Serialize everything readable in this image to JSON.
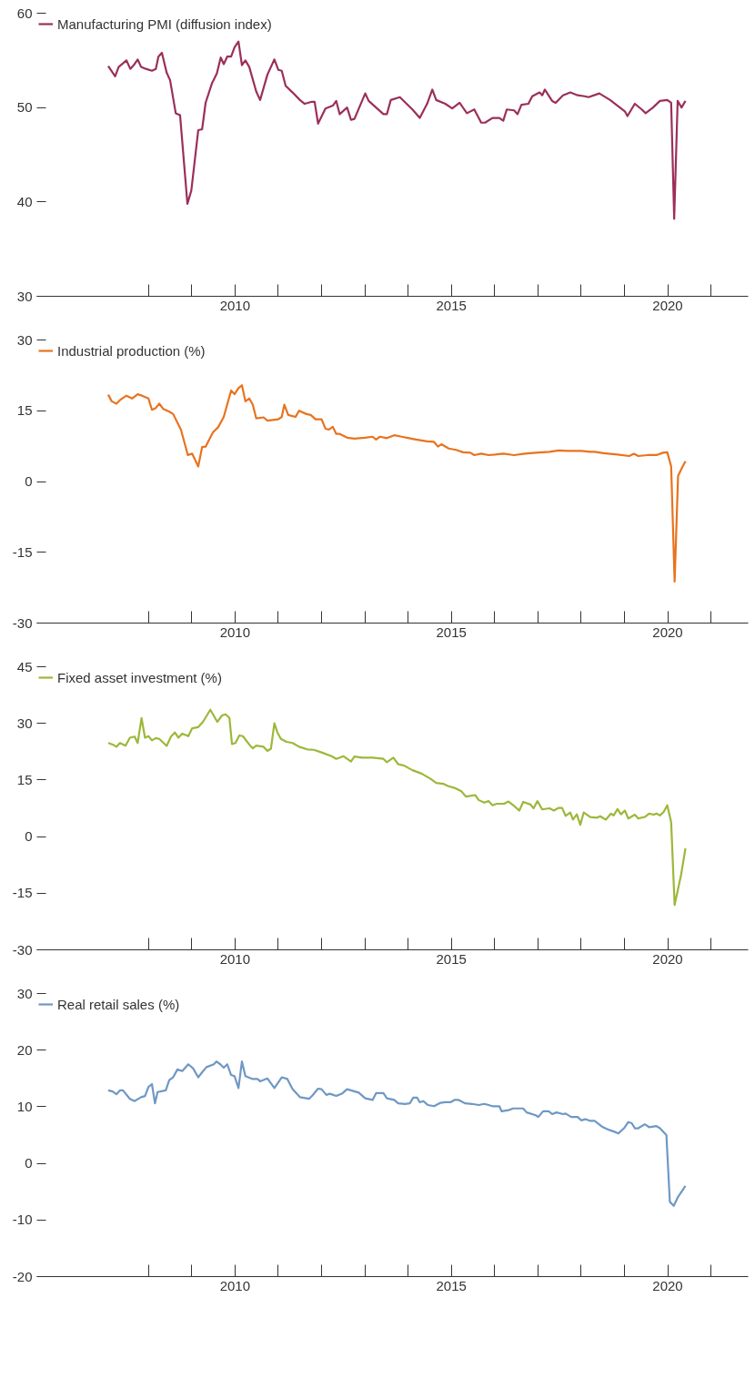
{
  "chart_data": [
    {
      "type": "line",
      "legend": "top left",
      "xlim": [
        2005.42,
        2021.86
      ],
      "ylim": [
        30,
        60
      ],
      "yticks": [
        30,
        40,
        50,
        60
      ],
      "xticks": [
        {
          "value": 2008,
          "label": null
        },
        {
          "value": 2009,
          "label": null
        },
        {
          "value": 2010,
          "label": "2010"
        },
        {
          "value": 2011,
          "label": null
        },
        {
          "value": 2012,
          "label": null
        },
        {
          "value": 2013,
          "label": null
        },
        {
          "value": 2014,
          "label": null
        },
        {
          "value": 2015,
          "label": "2015"
        },
        {
          "value": 2016,
          "label": null
        },
        {
          "value": 2017,
          "label": null
        },
        {
          "value": 2018,
          "label": null
        },
        {
          "value": 2019,
          "label": null
        },
        {
          "value": 2020,
          "label": "2020"
        },
        {
          "value": 2021,
          "label": null
        }
      ],
      "x": [
        2007.07,
        2007.23,
        2007.31,
        2007.49,
        2007.58,
        2007.66,
        2007.75,
        2007.83,
        2007.94,
        2008.08,
        2008.17,
        2008.23,
        2008.31,
        2008.42,
        2008.5,
        2008.63,
        2008.73,
        2008.9,
        2008.99,
        2009.15,
        2009.24,
        2009.32,
        2009.47,
        2009.58,
        2009.67,
        2009.74,
        2009.82,
        2009.91,
        2009.99,
        2010.08,
        2010.16,
        2010.24,
        2010.33,
        2010.49,
        2010.58,
        2010.75,
        2010.91,
        2011.0,
        2011.08,
        2011.17,
        2011.33,
        2011.5,
        2011.61,
        2011.76,
        2011.84,
        2011.92,
        2012.09,
        2012.26,
        2012.34,
        2012.42,
        2012.59,
        2012.68,
        2012.76,
        2013.01,
        2013.09,
        2013.26,
        2013.43,
        2013.51,
        2013.6,
        2013.81,
        2014.1,
        2014.27,
        2014.44,
        2014.56,
        2014.65,
        2014.86,
        2015.02,
        2015.19,
        2015.36,
        2015.53,
        2015.69,
        2015.78,
        2015.95,
        2016.11,
        2016.2,
        2016.28,
        2016.45,
        2016.53,
        2016.62,
        2016.78,
        2016.87,
        2017.04,
        2017.1,
        2017.16,
        2017.33,
        2017.41,
        2017.58,
        2017.75,
        2017.92,
        2018.08,
        2018.17,
        2018.42,
        2018.67,
        2018.84,
        2019.01,
        2019.07,
        2019.24,
        2019.4,
        2019.49,
        2019.66,
        2019.82,
        2019.99,
        2020.08,
        2020.15,
        2020.23,
        2020.32,
        2020.41
      ],
      "series": [
        {
          "name": "Manufacturing PMI (diffusion index)",
          "color": "#9b2f5a",
          "values": [
            54.4,
            53.3,
            54.3,
            55.0,
            54.1,
            54.5,
            55.1,
            54.3,
            54.1,
            53.9,
            54.1,
            55.4,
            55.8,
            53.7,
            52.9,
            49.4,
            49.2,
            39.8,
            41.2,
            47.6,
            47.7,
            50.5,
            52.6,
            53.6,
            55.3,
            54.6,
            55.4,
            55.4,
            56.4,
            57.0,
            54.5,
            55.0,
            54.3,
            51.7,
            50.8,
            53.5,
            55.1,
            54.0,
            53.9,
            52.3,
            51.6,
            50.8,
            50.4,
            50.6,
            50.6,
            48.3,
            49.9,
            50.2,
            50.7,
            49.3,
            50.0,
            48.7,
            48.8,
            51.5,
            50.7,
            50.0,
            49.3,
            49.3,
            50.8,
            51.1,
            49.8,
            48.9,
            50.4,
            51.9,
            50.8,
            50.4,
            49.9,
            50.5,
            49.4,
            49.8,
            48.4,
            48.4,
            48.9,
            48.9,
            48.6,
            49.8,
            49.7,
            49.3,
            50.3,
            50.4,
            51.2,
            51.6,
            51.3,
            51.9,
            50.7,
            50.5,
            51.3,
            51.6,
            51.3,
            51.2,
            51.1,
            51.5,
            50.8,
            50.2,
            49.6,
            49.1,
            50.4,
            49.8,
            49.4,
            50.0,
            50.7,
            50.8,
            50.5,
            38.2,
            50.7,
            50.0,
            50.7
          ]
        }
      ]
    },
    {
      "type": "line",
      "legend": "top left",
      "xlim": [
        2005.42,
        2021.86
      ],
      "ylim": [
        -30,
        30
      ],
      "yticks": [
        -30,
        -15,
        0,
        15,
        30
      ],
      "xticks": [
        {
          "value": 2008,
          "label": null
        },
        {
          "value": 2009,
          "label": null
        },
        {
          "value": 2010,
          "label": "2010"
        },
        {
          "value": 2011,
          "label": null
        },
        {
          "value": 2012,
          "label": null
        },
        {
          "value": 2013,
          "label": null
        },
        {
          "value": 2014,
          "label": null
        },
        {
          "value": 2015,
          "label": "2015"
        },
        {
          "value": 2016,
          "label": null
        },
        {
          "value": 2017,
          "label": null
        },
        {
          "value": 2018,
          "label": null
        },
        {
          "value": 2019,
          "label": null
        },
        {
          "value": 2020,
          "label": "2020"
        },
        {
          "value": 2021,
          "label": null
        }
      ],
      "x": [
        2007.07,
        2007.15,
        2007.26,
        2007.36,
        2007.49,
        2007.62,
        2007.75,
        2007.85,
        2008.0,
        2008.08,
        2008.17,
        2008.25,
        2008.34,
        2008.48,
        2008.57,
        2008.75,
        2008.91,
        2009.01,
        2009.15,
        2009.24,
        2009.32,
        2009.49,
        2009.61,
        2009.74,
        2009.91,
        2009.99,
        2010.08,
        2010.16,
        2010.24,
        2010.33,
        2010.41,
        2010.49,
        2010.66,
        2010.75,
        2011.0,
        2011.08,
        2011.14,
        2011.23,
        2011.4,
        2011.48,
        2011.65,
        2011.75,
        2011.86,
        2012.0,
        2012.09,
        2012.17,
        2012.26,
        2012.34,
        2012.42,
        2012.59,
        2012.76,
        2013.01,
        2013.18,
        2013.26,
        2013.35,
        2013.51,
        2013.68,
        2013.85,
        2014.02,
        2014.18,
        2014.44,
        2014.6,
        2014.69,
        2014.77,
        2014.94,
        2015.11,
        2015.27,
        2015.44,
        2015.53,
        2015.69,
        2015.86,
        2016.01,
        2016.2,
        2016.45,
        2016.7,
        2016.95,
        2017.27,
        2017.48,
        2017.69,
        2018.0,
        2018.21,
        2018.31,
        2018.52,
        2018.84,
        2019.11,
        2019.22,
        2019.32,
        2019.53,
        2019.74,
        2019.89,
        2019.99,
        2020.08,
        2020.16,
        2020.24,
        2020.33,
        2020.41
      ],
      "series": [
        {
          "name": "Industrial production (%)",
          "color": "#e8731f",
          "values": [
            18.4,
            17.0,
            16.5,
            17.4,
            18.2,
            17.6,
            18.5,
            18.2,
            17.6,
            15.2,
            15.6,
            16.5,
            15.4,
            14.8,
            14.3,
            11.0,
            5.6,
            5.9,
            3.2,
            7.3,
            7.4,
            10.4,
            11.5,
            13.7,
            19.3,
            18.5,
            19.8,
            20.4,
            17.0,
            17.6,
            16.3,
            13.4,
            13.6,
            12.9,
            13.2,
            13.7,
            16.3,
            14.1,
            13.7,
            15.0,
            14.3,
            14.1,
            13.2,
            13.2,
            11.2,
            11.0,
            11.6,
            10.1,
            10.1,
            9.3,
            9.1,
            9.3,
            9.5,
            8.9,
            9.5,
            9.2,
            9.8,
            9.5,
            9.2,
            8.9,
            8.5,
            8.4,
            7.4,
            7.9,
            7.0,
            6.7,
            6.2,
            6.1,
            5.6,
            5.9,
            5.6,
            5.7,
            5.9,
            5.6,
            5.9,
            6.1,
            6.3,
            6.6,
            6.5,
            6.5,
            6.3,
            6.3,
            6.0,
            5.7,
            5.4,
            5.9,
            5.4,
            5.6,
            5.6,
            6.1,
            6.2,
            3.2,
            -21.2,
            1.2,
            2.9,
            4.3
          ]
        }
      ]
    },
    {
      "type": "line",
      "legend": "top left",
      "xlim": [
        2005.42,
        2021.86
      ],
      "ylim": [
        -30,
        45
      ],
      "yticks": [
        -30,
        -15,
        0,
        15,
        30,
        45
      ],
      "xticks": [
        {
          "value": 2008,
          "label": null
        },
        {
          "value": 2009,
          "label": null
        },
        {
          "value": 2010,
          "label": "2010"
        },
        {
          "value": 2011,
          "label": null
        },
        {
          "value": 2012,
          "label": null
        },
        {
          "value": 2013,
          "label": null
        },
        {
          "value": 2014,
          "label": null
        },
        {
          "value": 2015,
          "label": "2015"
        },
        {
          "value": 2016,
          "label": null
        },
        {
          "value": 2017,
          "label": null
        },
        {
          "value": 2018,
          "label": null
        },
        {
          "value": 2019,
          "label": null
        },
        {
          "value": 2020,
          "label": "2020"
        },
        {
          "value": 2021,
          "label": null
        }
      ],
      "x": [
        2007.07,
        2007.17,
        2007.26,
        2007.34,
        2007.47,
        2007.57,
        2007.68,
        2007.75,
        2007.84,
        2007.92,
        2008.0,
        2008.08,
        2008.17,
        2008.25,
        2008.42,
        2008.52,
        2008.61,
        2008.69,
        2008.78,
        2008.92,
        2009.01,
        2009.15,
        2009.26,
        2009.43,
        2009.59,
        2009.7,
        2009.78,
        2009.87,
        2009.93,
        2010.01,
        2010.1,
        2010.18,
        2010.35,
        2010.41,
        2010.49,
        2010.66,
        2010.75,
        2010.83,
        2010.91,
        2010.98,
        2011.06,
        2011.19,
        2011.33,
        2011.48,
        2011.67,
        2011.82,
        2012.0,
        2012.23,
        2012.34,
        2012.51,
        2012.68,
        2012.76,
        2012.93,
        2013.18,
        2013.43,
        2013.51,
        2013.66,
        2013.77,
        2013.91,
        2014.1,
        2014.31,
        2014.52,
        2014.65,
        2014.81,
        2014.92,
        2015.07,
        2015.23,
        2015.34,
        2015.55,
        2015.63,
        2015.76,
        2015.86,
        2015.95,
        2016.05,
        2016.22,
        2016.32,
        2016.43,
        2016.57,
        2016.66,
        2016.83,
        2016.9,
        2016.99,
        2017.1,
        2017.27,
        2017.37,
        2017.48,
        2017.56,
        2017.64,
        2017.75,
        2017.81,
        2017.9,
        2017.98,
        2018.06,
        2018.21,
        2018.36,
        2018.44,
        2018.57,
        2018.69,
        2018.75,
        2018.84,
        2018.92,
        2019.01,
        2019.09,
        2019.24,
        2019.32,
        2019.47,
        2019.57,
        2019.68,
        2019.74,
        2019.82,
        2019.91,
        2019.99,
        2020.08,
        2020.16,
        2020.31,
        2020.41
      ],
      "series": [
        {
          "name": "Fixed asset investment (%)",
          "color": "#9cb83a",
          "values": [
            24.8,
            24.4,
            23.8,
            24.8,
            24.1,
            26.2,
            26.5,
            24.8,
            31.4,
            26.2,
            26.6,
            25.5,
            26.1,
            25.9,
            24.0,
            26.5,
            27.6,
            26.2,
            27.3,
            26.6,
            28.7,
            29.0,
            30.4,
            33.6,
            30.4,
            32.1,
            32.4,
            31.5,
            24.5,
            24.8,
            26.8,
            26.6,
            24.1,
            23.4,
            24.1,
            23.8,
            22.7,
            23.3,
            30.0,
            27.6,
            25.9,
            25.1,
            24.8,
            23.8,
            23.1,
            23.0,
            22.3,
            21.3,
            20.6,
            21.3,
            19.9,
            21.2,
            20.9,
            20.9,
            20.6,
            19.7,
            20.9,
            19.2,
            18.8,
            17.6,
            16.7,
            15.3,
            14.2,
            14.0,
            13.4,
            12.9,
            12.0,
            10.6,
            11.0,
            9.7,
            9.0,
            9.4,
            8.3,
            8.7,
            8.7,
            9.3,
            8.3,
            6.9,
            9.2,
            8.5,
            7.5,
            9.4,
            7.2,
            7.5,
            6.9,
            7.6,
            7.6,
            5.5,
            6.4,
            4.5,
            5.9,
            3.1,
            6.4,
            5.2,
            5.0,
            5.4,
            4.5,
            6.1,
            5.6,
            7.3,
            5.9,
            6.9,
            4.8,
            5.8,
            4.8,
            5.2,
            6.1,
            5.8,
            6.1,
            5.6,
            6.6,
            8.3,
            3.8,
            -18.1,
            -10.1,
            -3.1
          ]
        }
      ]
    },
    {
      "type": "line",
      "legend": "top left",
      "xlim": [
        2005.42,
        2021.86
      ],
      "ylim": [
        -20,
        30
      ],
      "yticks": [
        -20,
        -10,
        0,
        10,
        20,
        30
      ],
      "xticks": [
        {
          "value": 2008,
          "label": null
        },
        {
          "value": 2009,
          "label": null
        },
        {
          "value": 2010,
          "label": "2010"
        },
        {
          "value": 2011,
          "label": null
        },
        {
          "value": 2012,
          "label": null
        },
        {
          "value": 2013,
          "label": null
        },
        {
          "value": 2014,
          "label": null
        },
        {
          "value": 2015,
          "label": "2015"
        },
        {
          "value": 2016,
          "label": null
        },
        {
          "value": 2017,
          "label": null
        },
        {
          "value": 2018,
          "label": null
        },
        {
          "value": 2019,
          "label": null
        },
        {
          "value": 2020,
          "label": "2020"
        },
        {
          "value": 2021,
          "label": null
        }
      ],
      "x": [
        2007.07,
        2007.17,
        2007.26,
        2007.34,
        2007.41,
        2007.57,
        2007.68,
        2007.83,
        2007.92,
        2008.0,
        2008.08,
        2008.15,
        2008.21,
        2008.4,
        2008.48,
        2008.57,
        2008.67,
        2008.78,
        2008.92,
        2009.03,
        2009.15,
        2009.24,
        2009.34,
        2009.51,
        2009.57,
        2009.66,
        2009.74,
        2009.82,
        2009.91,
        2009.99,
        2010.08,
        2010.16,
        2010.24,
        2010.41,
        2010.52,
        2010.58,
        2010.75,
        2010.91,
        2011.08,
        2011.21,
        2011.33,
        2011.5,
        2011.71,
        2011.79,
        2011.92,
        2012.0,
        2012.11,
        2012.19,
        2012.34,
        2012.47,
        2012.59,
        2012.68,
        2012.86,
        2013.01,
        2013.18,
        2013.26,
        2013.43,
        2013.51,
        2013.68,
        2013.77,
        2013.93,
        2014.04,
        2014.12,
        2014.21,
        2014.27,
        2014.35,
        2014.46,
        2014.6,
        2014.75,
        2014.86,
        2014.98,
        2015.07,
        2015.17,
        2015.32,
        2015.48,
        2015.63,
        2015.76,
        2015.86,
        2015.95,
        2016.11,
        2016.16,
        2016.32,
        2016.43,
        2016.66,
        2016.74,
        2016.95,
        2017.01,
        2017.12,
        2017.25,
        2017.33,
        2017.43,
        2017.58,
        2017.64,
        2017.77,
        2017.92,
        2018.0,
        2018.1,
        2018.21,
        2018.31,
        2018.5,
        2018.65,
        2018.8,
        2018.86,
        2018.99,
        2019.09,
        2019.17,
        2019.24,
        2019.32,
        2019.47,
        2019.57,
        2019.74,
        2019.82,
        2019.97,
        2020.05,
        2020.14,
        2020.24,
        2020.41
      ],
      "series": [
        {
          "name": "Real retail sales (%)",
          "color": "#6f98c4",
          "values": [
            12.9,
            12.7,
            12.2,
            12.9,
            12.9,
            11.4,
            11.0,
            11.7,
            11.9,
            13.5,
            14.0,
            10.6,
            12.6,
            12.9,
            14.7,
            15.2,
            16.6,
            16.3,
            17.5,
            16.8,
            15.2,
            16.1,
            17.0,
            17.5,
            18.0,
            17.5,
            16.9,
            17.5,
            15.6,
            15.4,
            13.3,
            18.0,
            15.4,
            14.9,
            14.9,
            14.5,
            15.0,
            13.3,
            15.2,
            14.9,
            13.1,
            11.7,
            11.4,
            12.0,
            13.2,
            13.1,
            12.1,
            12.3,
            11.9,
            12.3,
            13.1,
            12.9,
            12.5,
            11.5,
            11.2,
            12.4,
            12.4,
            11.5,
            11.2,
            10.6,
            10.5,
            10.6,
            11.6,
            11.6,
            10.8,
            11.0,
            10.3,
            10.1,
            10.7,
            10.8,
            10.8,
            11.2,
            11.2,
            10.6,
            10.5,
            10.3,
            10.5,
            10.3,
            10.1,
            10.1,
            9.2,
            9.4,
            9.7,
            9.7,
            9.0,
            8.5,
            8.2,
            9.2,
            9.2,
            8.7,
            9.0,
            8.7,
            8.8,
            8.2,
            8.2,
            7.6,
            7.8,
            7.5,
            7.5,
            6.4,
            5.9,
            5.5,
            5.3,
            6.2,
            7.3,
            7.1,
            6.2,
            6.2,
            6.9,
            6.4,
            6.6,
            6.2,
            5.0,
            -6.8,
            -7.5,
            -5.9,
            -4.0
          ]
        }
      ]
    }
  ]
}
